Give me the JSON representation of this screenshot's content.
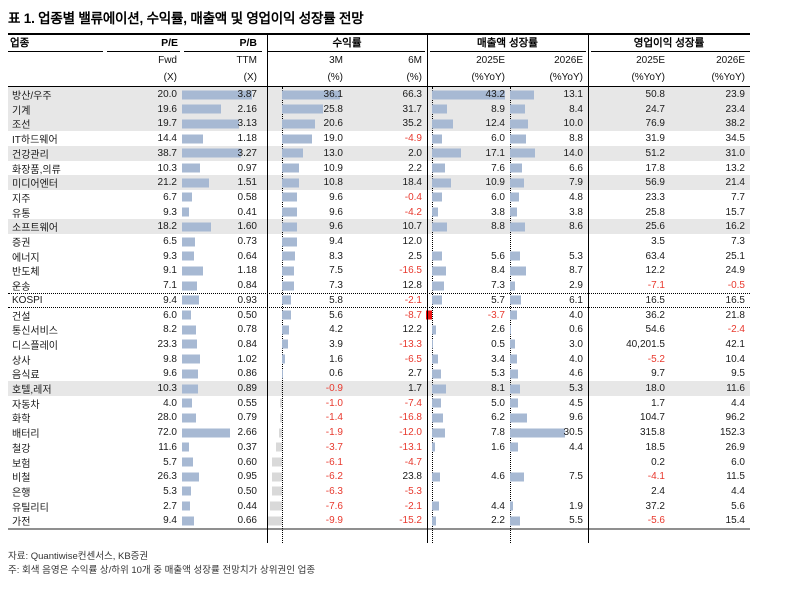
{
  "title": "표 1. 업종별 밸류에이션, 수익률, 매출액 및 영업이익 성장률 전망",
  "header": {
    "sector_label": "업종",
    "groups": [
      {
        "label": "P/E"
      },
      {
        "label": "P/B"
      },
      {
        "label": "수익률"
      },
      {
        "label": "매출액 성장률"
      },
      {
        "label": "영업이익 성장률"
      }
    ],
    "sub_labels": [
      "Fwd",
      "TTM",
      "3M",
      "6M",
      "2025E",
      "2026E",
      "2025E",
      "2026E"
    ],
    "unit_labels": [
      "(X)",
      "(X)",
      "(%)",
      "(%)",
      "(%YoY)",
      "(%YoY)",
      "(%YoY)",
      "(%YoY)"
    ]
  },
  "colors": {
    "bar_blue": "#a7b9d3",
    "bar_gray_negative": "#d9d9d9",
    "bar_red_negative": "#ee1111",
    "negative_text": "#e8392e",
    "row_highlight": "#e7e7e7"
  },
  "rows": [
    {
      "name": "방산/우주",
      "pe": "20.0",
      "pb": "3.87",
      "r3m": "36.1",
      "r6m": "66.3",
      "s25": "43.2",
      "s26": "13.1",
      "o25": "50.8",
      "o26": "23.9",
      "gray": true
    },
    {
      "name": "기계",
      "pe": "19.6",
      "pb": "2.16",
      "r3m": "25.8",
      "r6m": "31.7",
      "s25": "8.9",
      "s26": "8.4",
      "o25": "24.7",
      "o26": "23.4",
      "gray": true
    },
    {
      "name": "조선",
      "pe": "19.7",
      "pb": "3.13",
      "r3m": "20.6",
      "r6m": "35.2",
      "s25": "12.4",
      "s26": "10.0",
      "o25": "76.9",
      "o26": "38.2",
      "gray": true
    },
    {
      "name": "IT하드웨어",
      "pe": "14.4",
      "pb": "1.18",
      "r3m": "19.0",
      "r6m": "-4.9",
      "s25": "6.0",
      "s26": "8.8",
      "o25": "31.9",
      "o26": "34.5"
    },
    {
      "name": "건강관리",
      "pe": "38.7",
      "pb": "3.27",
      "r3m": "13.0",
      "r6m": "2.0",
      "s25": "17.1",
      "s26": "14.0",
      "o25": "51.2",
      "o26": "31.0",
      "gray": true
    },
    {
      "name": "화장품,의류",
      "pe": "10.3",
      "pb": "0.97",
      "r3m": "10.9",
      "r6m": "2.2",
      "s25": "7.6",
      "s26": "6.6",
      "o25": "17.8",
      "o26": "13.2"
    },
    {
      "name": "미디어엔터",
      "pe": "21.2",
      "pb": "1.51",
      "r3m": "10.8",
      "r6m": "18.4",
      "s25": "10.9",
      "s26": "7.9",
      "o25": "56.9",
      "o26": "21.4",
      "gray": true
    },
    {
      "name": "지주",
      "pe": "6.7",
      "pb": "0.58",
      "r3m": "9.6",
      "r6m": "-0.4",
      "s25": "6.0",
      "s26": "4.8",
      "o25": "23.3",
      "o26": "7.7"
    },
    {
      "name": "유통",
      "pe": "9.3",
      "pb": "0.41",
      "r3m": "9.6",
      "r6m": "-4.2",
      "s25": "3.8",
      "s26": "3.8",
      "o25": "25.8",
      "o26": "15.7"
    },
    {
      "name": "소프트웨어",
      "pe": "18.2",
      "pb": "1.60",
      "r3m": "9.6",
      "r6m": "10.7",
      "s25": "8.8",
      "s26": "8.6",
      "o25": "25.6",
      "o26": "16.2",
      "gray": true
    },
    {
      "name": "증권",
      "pe": "6.5",
      "pb": "0.73",
      "r3m": "9.4",
      "r6m": "12.0",
      "s25": "",
      "s26": "",
      "o25": "3.5",
      "o26": "7.3"
    },
    {
      "name": "에너지",
      "pe": "9.3",
      "pb": "0.64",
      "r3m": "8.3",
      "r6m": "2.5",
      "s25": "5.6",
      "s26": "5.3",
      "o25": "63.4",
      "o26": "25.1"
    },
    {
      "name": "반도체",
      "pe": "9.1",
      "pb": "1.18",
      "r3m": "7.5",
      "r6m": "-16.5",
      "s25": "8.4",
      "s26": "8.7",
      "o25": "12.2",
      "o26": "24.9"
    },
    {
      "name": "운송",
      "pe": "7.1",
      "pb": "0.84",
      "r3m": "7.3",
      "r6m": "12.8",
      "s25": "7.3",
      "s26": "2.9",
      "o25": "-7.1",
      "o26": "-0.5"
    },
    {
      "name": "KOSPI",
      "pe": "9.4",
      "pb": "0.93",
      "r3m": "5.8",
      "r6m": "-2.1",
      "s25": "5.7",
      "s26": "6.1",
      "o25": "16.5",
      "o26": "16.5",
      "kospi": true
    },
    {
      "name": "건설",
      "pe": "6.0",
      "pb": "0.50",
      "r3m": "5.6",
      "r6m": "-8.7",
      "s25": "-3.7",
      "s26": "4.0",
      "o25": "36.2",
      "o26": "21.8"
    },
    {
      "name": "통신서비스",
      "pe": "8.2",
      "pb": "0.78",
      "r3m": "4.2",
      "r6m": "12.2",
      "s25": "2.6",
      "s26": "0.6",
      "o25": "54.6",
      "o26": "-2.4"
    },
    {
      "name": "디스플레이",
      "pe": "23.3",
      "pb": "0.84",
      "r3m": "3.9",
      "r6m": "-13.3",
      "s25": "0.5",
      "s26": "3.0",
      "o25": "40,201.5",
      "o26": "42.1"
    },
    {
      "name": "상사",
      "pe": "9.8",
      "pb": "1.02",
      "r3m": "1.6",
      "r6m": "-6.5",
      "s25": "3.4",
      "s26": "4.0",
      "o25": "-5.2",
      "o26": "10.4"
    },
    {
      "name": "음식료",
      "pe": "9.6",
      "pb": "0.86",
      "r3m": "0.6",
      "r6m": "2.7",
      "s25": "5.3",
      "s26": "4.6",
      "o25": "9.7",
      "o26": "9.5"
    },
    {
      "name": "호텔,레저",
      "pe": "10.3",
      "pb": "0.89",
      "r3m": "-0.9",
      "r6m": "1.7",
      "s25": "8.1",
      "s26": "5.3",
      "o25": "18.0",
      "o26": "11.6",
      "gray": true
    },
    {
      "name": "자동차",
      "pe": "4.0",
      "pb": "0.55",
      "r3m": "-1.0",
      "r6m": "-7.4",
      "s25": "5.0",
      "s26": "4.5",
      "o25": "1.7",
      "o26": "4.4"
    },
    {
      "name": "화학",
      "pe": "28.0",
      "pb": "0.79",
      "r3m": "-1.4",
      "r6m": "-16.8",
      "s25": "6.2",
      "s26": "9.6",
      "o25": "104.7",
      "o26": "96.2"
    },
    {
      "name": "배터리",
      "pe": "72.0",
      "pb": "2.66",
      "r3m": "-1.9",
      "r6m": "-12.0",
      "s25": "7.8",
      "s26": "30.5",
      "o25": "315.8",
      "o26": "152.3"
    },
    {
      "name": "철강",
      "pe": "11.6",
      "pb": "0.37",
      "r3m": "-3.7",
      "r6m": "-13.1",
      "s25": "1.6",
      "s26": "4.4",
      "o25": "18.5",
      "o26": "26.9"
    },
    {
      "name": "보험",
      "pe": "5.7",
      "pb": "0.60",
      "r3m": "-6.1",
      "r6m": "-4.7",
      "s25": "",
      "s26": "",
      "o25": "0.2",
      "o26": "6.0"
    },
    {
      "name": "비철",
      "pe": "26.3",
      "pb": "0.95",
      "r3m": "-6.2",
      "r6m": "23.8",
      "s25": "4.6",
      "s26": "7.5",
      "o25": "-4.1",
      "o26": "11.5"
    },
    {
      "name": "은행",
      "pe": "5.3",
      "pb": "0.50",
      "r3m": "-6.3",
      "r6m": "-5.3",
      "s25": "",
      "s26": "",
      "o25": "2.4",
      "o26": "4.4"
    },
    {
      "name": "유틸리티",
      "pe": "2.7",
      "pb": "0.44",
      "r3m": "-7.6",
      "r6m": "-2.1",
      "s25": "4.4",
      "s26": "1.9",
      "o25": "37.2",
      "o26": "5.6"
    },
    {
      "name": "가전",
      "pe": "9.4",
      "pb": "0.66",
      "r3m": "-9.9",
      "r6m": "-15.2",
      "s25": "2.2",
      "s26": "5.5",
      "o25": "-5.6",
      "o26": "15.4"
    }
  ],
  "footer": {
    "source": "자료: Quantiwise컨센서스, KB증권",
    "note": "주: 회색 음영은 수익률 상/하위 10개 중 매출액 성장률 전망치가 상위권인 업종"
  }
}
